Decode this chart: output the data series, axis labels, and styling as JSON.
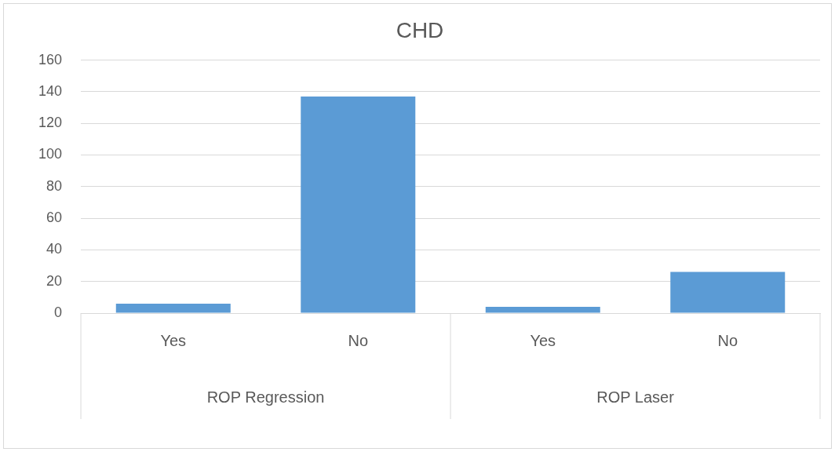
{
  "chart_data": {
    "type": "bar",
    "title": "CHD",
    "categories": [
      "Yes",
      "No",
      "Yes",
      "No"
    ],
    "values": [
      6,
      137,
      4,
      26
    ],
    "color": "#5b9bd5",
    "annotations": [
      "ROP Regression",
      "ROP Laser"
    ],
    "ylim": [
      0,
      160
    ],
    "yticks": [
      0,
      20,
      40,
      60,
      80,
      100,
      120,
      140,
      160
    ],
    "grid": "y",
    "legend": false
  }
}
